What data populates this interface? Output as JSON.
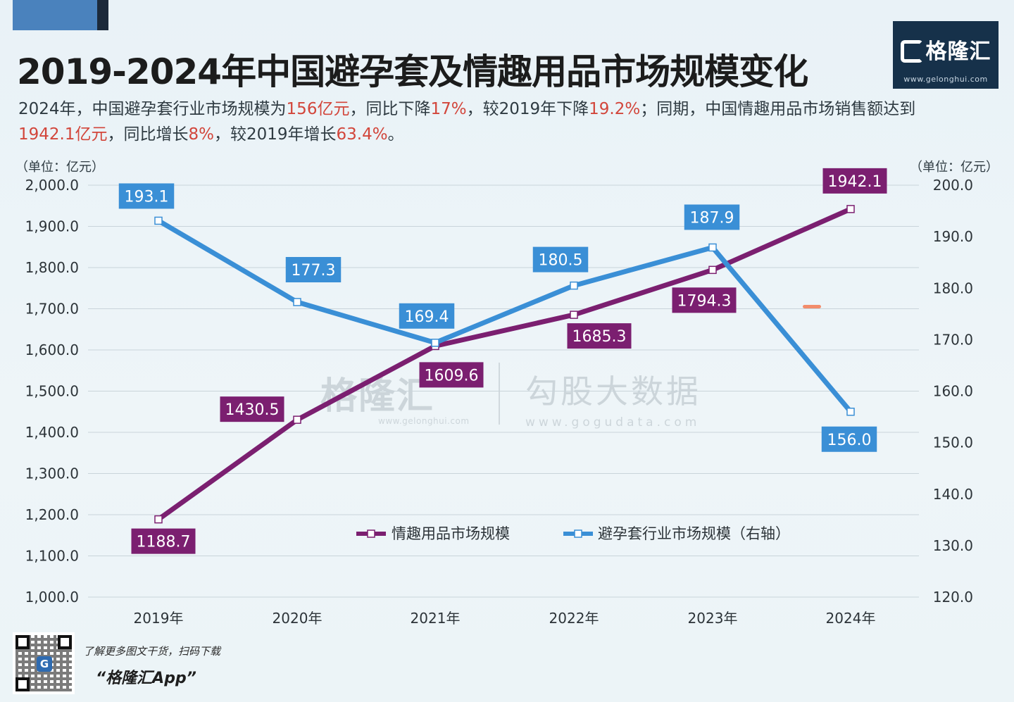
{
  "title": "2019-2024年中国避孕套及情趣用品市场规模变化",
  "summary": {
    "p1": "2024年，中国避孕套行业市场规模为",
    "v1": "156亿元",
    "p2": "，同比下降",
    "v2": "17%",
    "p3": "，较2019年下降",
    "v3": "19.2%",
    "p4": "；同期，中国情趣用品市场销售额达到",
    "v4": "1942.1亿元",
    "p5": "，同比增长",
    "v5": "8%",
    "p6": "，较2019年增长",
    "v6": "63.4%",
    "p7": "。"
  },
  "logo": {
    "name": "格隆汇",
    "url": "www.gelonghui.com"
  },
  "units": {
    "left": "（单位：亿元）",
    "right": "（单位：亿元）"
  },
  "watermarks": {
    "gelonghui": "格隆汇",
    "gelonghui_url": "www.gelonghui.com",
    "gogu": "勾股大数据",
    "gogu_url": "www.gogudata.com"
  },
  "footer": {
    "line1": "了解更多图文干货，扫码下载",
    "line2": "“格隆汇App”",
    "qr_logo": "G"
  },
  "colors": {
    "left_series": "#7b1f70",
    "right_series": "#3a8fd6",
    "label_left_bg": "#7b1f70",
    "label_right_bg": "#3a8fd6"
  },
  "chart_data": {
    "type": "line",
    "categories": [
      "2019年",
      "2020年",
      "2021年",
      "2022年",
      "2023年",
      "2024年"
    ],
    "series": [
      {
        "name": "情趣用品市场规模",
        "axis": "left",
        "values": [
          1188.7,
          1430.5,
          1609.6,
          1685.3,
          1794.3,
          1942.1
        ],
        "labels": [
          "1188.7",
          "1430.5",
          "1609.6",
          "1685.3",
          "1794.3",
          "1942.1"
        ]
      },
      {
        "name": "避孕套行业市场规模（右轴）",
        "axis": "right",
        "values": [
          193.1,
          177.3,
          169.4,
          180.5,
          187.9,
          156.0
        ],
        "labels": [
          "193.1",
          "177.3",
          "169.4",
          "180.5",
          "187.9",
          "156.0"
        ]
      }
    ],
    "y_left": {
      "range": [
        1000,
        2000
      ],
      "ticks": [
        "1,000.0",
        "1,100.0",
        "1,200.0",
        "1,300.0",
        "1,400.0",
        "1,500.0",
        "1,600.0",
        "1,700.0",
        "1,800.0",
        "1,900.0",
        "2,000.0"
      ]
    },
    "y_right": {
      "range": [
        120,
        200
      ],
      "ticks": [
        "120.0",
        "130.0",
        "140.0",
        "150.0",
        "160.0",
        "170.0",
        "180.0",
        "190.0",
        "200.0"
      ]
    },
    "grid": true,
    "legend": "bottom-center"
  }
}
